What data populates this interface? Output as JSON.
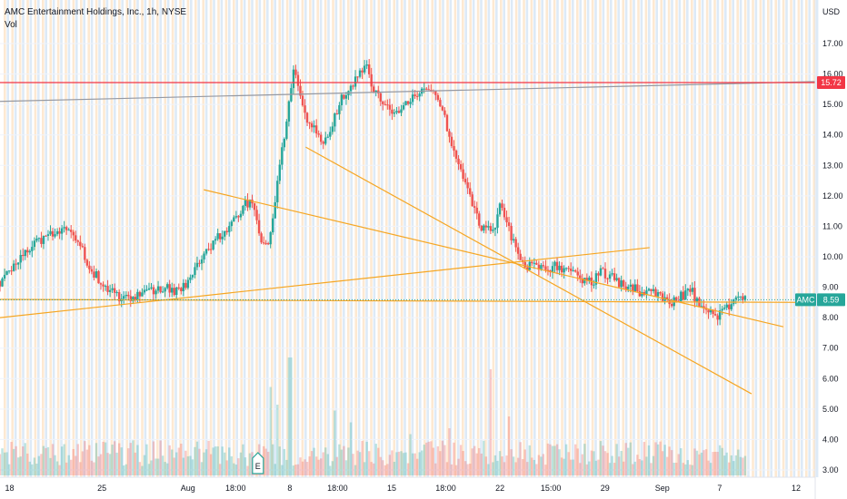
{
  "header": {
    "title": "AMC Entertainment Holdings, Inc., 1h, NYSE",
    "indicator": "Vol"
  },
  "colors": {
    "up": "#26a69a",
    "down": "#ef5350",
    "trendline": "#f5a623",
    "resistance": "#f23645",
    "grey_line": "#9598a1",
    "price_badge": "#26a69a",
    "stripe_blue": "#ddeaf7",
    "stripe_orange": "#fde9d2"
  },
  "chart_data": {
    "type": "candlestick",
    "currency_label": "USD",
    "y_ticks": [
      "17.00",
      "16.00",
      "15.00",
      "14.00",
      "13.00",
      "12.00",
      "11.00",
      "10.00",
      "9.00",
      "8.00",
      "7.00",
      "6.00",
      "5.00",
      "4.00",
      "3.00"
    ],
    "ylim": [
      2.85,
      17.5
    ],
    "x_ticks": [
      {
        "label": "18",
        "x": 3
      },
      {
        "label": "25",
        "x": 32
      },
      {
        "label": "Aug",
        "x": 59
      },
      {
        "label": "18:00",
        "x": 74
      },
      {
        "label": "8",
        "x": 91
      },
      {
        "label": "18:00",
        "x": 106
      },
      {
        "label": "15",
        "x": 123
      },
      {
        "label": "18:00",
        "x": 140
      },
      {
        "label": "22",
        "x": 157
      },
      {
        "label": "15:00",
        "x": 173
      },
      {
        "label": "29",
        "x": 190
      },
      {
        "label": "Sep",
        "x": 208
      },
      {
        "label": "7",
        "x": 226
      },
      {
        "label": "12",
        "x": 250
      }
    ],
    "xlim": [
      0,
      256
    ],
    "price_path": [
      [
        0,
        9.2
      ],
      [
        4,
        9.6
      ],
      [
        7,
        10.1
      ],
      [
        11,
        10.4
      ],
      [
        15,
        10.6
      ],
      [
        19,
        10.9
      ],
      [
        22,
        11.05
      ],
      [
        24,
        10.6
      ],
      [
        27,
        9.9
      ],
      [
        30,
        9.4
      ],
      [
        33,
        9.0
      ],
      [
        36,
        8.75
      ],
      [
        39,
        8.6
      ],
      [
        43,
        8.7
      ],
      [
        47,
        8.9
      ],
      [
        51,
        8.95
      ],
      [
        55,
        8.9
      ],
      [
        58,
        9.05
      ],
      [
        60,
        9.4
      ],
      [
        63,
        9.9
      ],
      [
        66,
        10.3
      ],
      [
        70,
        10.8
      ],
      [
        74,
        11.3
      ],
      [
        77,
        11.8
      ],
      [
        80,
        11.7
      ],
      [
        82,
        10.3
      ],
      [
        84,
        10.4
      ],
      [
        86,
        11.6
      ],
      [
        88,
        13.2
      ],
      [
        90,
        14.4
      ],
      [
        92,
        16.2
      ],
      [
        93,
        15.9
      ],
      [
        95,
        15.0
      ],
      [
        97,
        14.4
      ],
      [
        100,
        14.0
      ],
      [
        102,
        13.8
      ],
      [
        105,
        14.5
      ],
      [
        107,
        15.2
      ],
      [
        109,
        15.5
      ],
      [
        111,
        15.7
      ],
      [
        113,
        16.0
      ],
      [
        115,
        16.2
      ],
      [
        117,
        15.6
      ],
      [
        120,
        15.2
      ],
      [
        123,
        14.7
      ],
      [
        125,
        14.6
      ],
      [
        127,
        15.0
      ],
      [
        130,
        15.2
      ],
      [
        133,
        15.4
      ],
      [
        135,
        15.6
      ],
      [
        137,
        15.3
      ],
      [
        139,
        14.8
      ],
      [
        141,
        14.0
      ],
      [
        143,
        13.2
      ],
      [
        146,
        12.4
      ],
      [
        149,
        11.6
      ],
      [
        151,
        11.0
      ],
      [
        153,
        10.9
      ],
      [
        155,
        10.8
      ],
      [
        157,
        11.9
      ],
      [
        159,
        11.1
      ],
      [
        161,
        10.6
      ],
      [
        163,
        10.1
      ],
      [
        165,
        9.7
      ],
      [
        168,
        9.8
      ],
      [
        171,
        9.5
      ],
      [
        174,
        9.7
      ],
      [
        177,
        9.5
      ],
      [
        180,
        9.4
      ],
      [
        183,
        9.3
      ],
      [
        186,
        9.2
      ],
      [
        189,
        9.5
      ],
      [
        191,
        9.4
      ],
      [
        194,
        9.2
      ],
      [
        197,
        9.0
      ],
      [
        200,
        8.9
      ],
      [
        203,
        8.8
      ],
      [
        206,
        8.8
      ],
      [
        208,
        8.6
      ],
      [
        211,
        8.5
      ],
      [
        214,
        8.7
      ],
      [
        217,
        8.9
      ],
      [
        219,
        8.5
      ],
      [
        222,
        8.3
      ],
      [
        225,
        8.05
      ],
      [
        228,
        8.25
      ],
      [
        230,
        8.5
      ],
      [
        232,
        8.6
      ],
      [
        234,
        8.59
      ]
    ],
    "last_price": {
      "value": 8.59,
      "label": "8.59",
      "symbol": "AMC"
    },
    "resistance": {
      "value": 15.72,
      "label": "15.72"
    },
    "lines": [
      {
        "kind": "grey",
        "from": [
          0,
          15.1
        ],
        "to": [
          256,
          15.75
        ]
      },
      {
        "kind": "trend",
        "from": [
          0,
          8.0
        ],
        "to": [
          204,
          10.3
        ]
      },
      {
        "kind": "trend",
        "from": [
          0,
          8.6
        ],
        "to": [
          256,
          8.5
        ]
      },
      {
        "kind": "trend",
        "from": [
          64,
          12.2
        ],
        "to": [
          246,
          7.7
        ]
      },
      {
        "kind": "trend",
        "from": [
          96,
          13.6
        ],
        "to": [
          236,
          5.5
        ]
      }
    ],
    "volume_spikes": [
      {
        "x": 91,
        "v": 1.0
      },
      {
        "x": 85,
        "v": 0.75
      },
      {
        "x": 87,
        "v": 0.6
      },
      {
        "x": 105,
        "v": 0.55
      },
      {
        "x": 110,
        "v": 0.45
      },
      {
        "x": 129,
        "v": 0.35
      },
      {
        "x": 141,
        "v": 0.4
      },
      {
        "x": 154,
        "v": 0.9
      },
      {
        "x": 160,
        "v": 0.5
      },
      {
        "x": 174,
        "v": 0.25
      },
      {
        "x": 198,
        "v": 0.28
      },
      {
        "x": 225,
        "v": 0.2
      }
    ],
    "event_marker": {
      "x": 81,
      "label": "E"
    }
  }
}
